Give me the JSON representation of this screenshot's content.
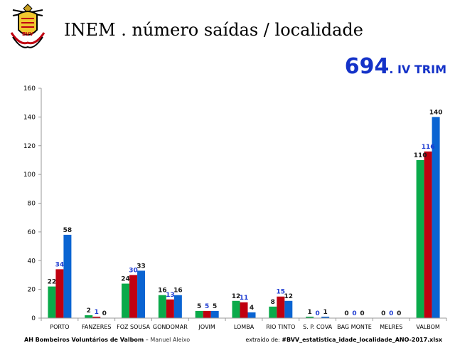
{
  "header": {
    "title": "INEM . número saídas / localidade",
    "total": "694",
    "period": ". IV TRIM",
    "logo_text": "BVV"
  },
  "footer": {
    "org": "AH Bombeiros Voluntários de Valbom",
    "sep": " – ",
    "author": "Manuel Aleixo",
    "source_prefix": "extraído de: ",
    "source_file": "#BVV_estatistica_idade_localidade_ANO-2017.xlsx"
  },
  "colors": {
    "green": "#0aaa4a",
    "red": "#c00010",
    "blue": "#0a64d2",
    "label_dark": "#1a1a1a",
    "label_blue": "#1e3cd2",
    "accent": "#1432c8"
  },
  "chart_data": {
    "type": "bar",
    "title": "INEM . número saídas / localidade",
    "categories": [
      "PORTO",
      "FANZERES",
      "FOZ SOUSA",
      "GONDOMAR",
      "JOVIM",
      "LOMBA",
      "RIO TINTO",
      "S. P. COVA",
      "BAG MONTE",
      "MELRES",
      "VALBOM"
    ],
    "series": [
      {
        "name": "series-green",
        "color": "#0aaa4a",
        "values": [
          22,
          2,
          24,
          16,
          5,
          12,
          8,
          1,
          0,
          0,
          110
        ]
      },
      {
        "name": "series-red",
        "color": "#c00010",
        "values": [
          34,
          1,
          30,
          13,
          5,
          11,
          15,
          0,
          0,
          0,
          116
        ]
      },
      {
        "name": "series-blue",
        "color": "#0a64d2",
        "values": [
          58,
          0,
          33,
          16,
          5,
          4,
          12,
          1,
          0,
          0,
          140
        ]
      }
    ],
    "label_colors": [
      "dark",
      "blue",
      "dark"
    ],
    "ylim": [
      0,
      160
    ],
    "yticks": [
      0,
      20,
      40,
      60,
      80,
      100,
      120,
      140,
      160
    ],
    "xlabel": "",
    "ylabel": "",
    "grid": false,
    "legend": "none"
  }
}
